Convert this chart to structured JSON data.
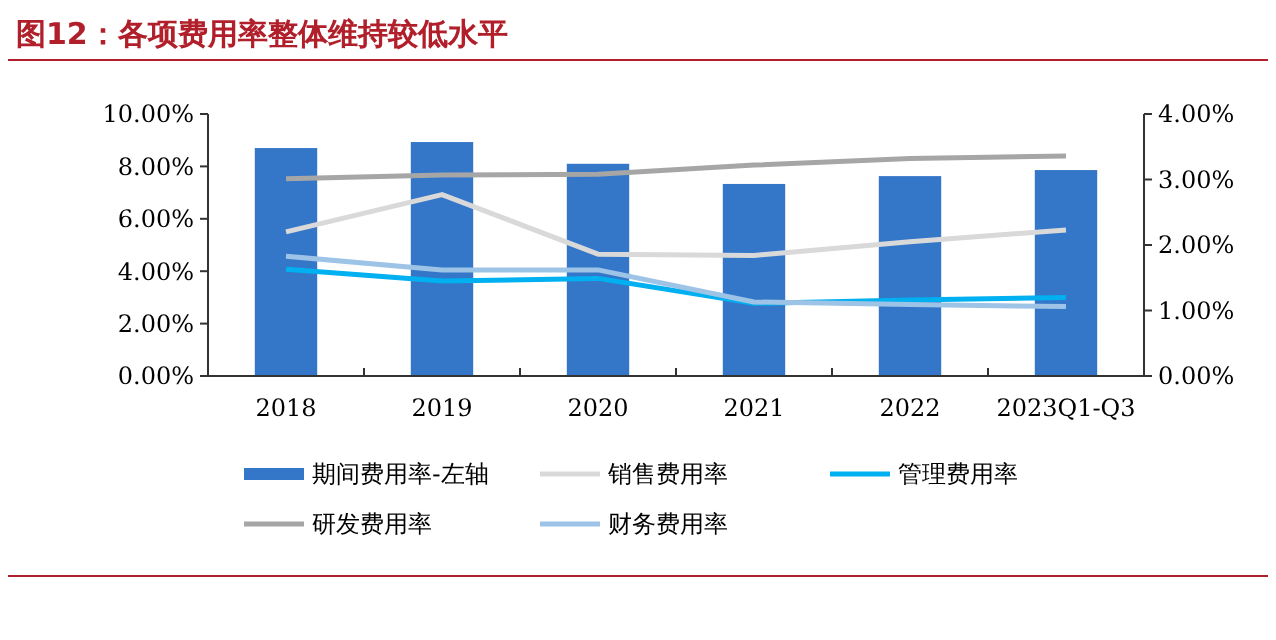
{
  "chart_data": {
    "type": "bar",
    "title": "图12：各项费用率整体维持较低水平",
    "categories": [
      "2018",
      "2019",
      "2020",
      "2021",
      "2022",
      "2023Q1-Q3"
    ],
    "series": [
      {
        "name": "期间费用率-左轴",
        "color": "#3476c8",
        "values": [
          8.7,
          8.93,
          8.1,
          7.33,
          7.63,
          7.86
        ]
      },
      {
        "name": "销售费用率",
        "type": "line",
        "axis": "y2",
        "color": "#d9d9d9",
        "values": [
          2.2,
          2.77,
          1.86,
          1.84,
          2.05,
          2.23
        ]
      },
      {
        "name": "管理费用率",
        "type": "line",
        "axis": "y2",
        "color": "#00b0f0",
        "values": [
          1.63,
          1.45,
          1.49,
          1.11,
          1.16,
          1.2
        ]
      },
      {
        "name": "研发费用率",
        "type": "line",
        "axis": "y2",
        "color": "#a6a6a6",
        "values": [
          3.01,
          3.07,
          3.08,
          3.22,
          3.32,
          3.36
        ]
      },
      {
        "name": "财务费用率",
        "type": "line",
        "axis": "y2",
        "color": "#9dc3e6",
        "values": [
          1.83,
          1.62,
          1.62,
          1.13,
          1.09,
          1.06
        ]
      }
    ],
    "ylim": [
      0,
      10
    ],
    "yticks": [
      {
        "value": 0,
        "label": "0.00%"
      },
      {
        "value": 2,
        "label": "2.00%"
      },
      {
        "value": 4,
        "label": "4.00%"
      },
      {
        "value": 6,
        "label": "6.00%"
      },
      {
        "value": 8,
        "label": "8.00%"
      },
      {
        "value": 10,
        "label": "10.00%"
      }
    ],
    "y2lim": [
      0,
      4
    ],
    "y2ticks": [
      {
        "value": 0,
        "label": "0.00%"
      },
      {
        "value": 1,
        "label": "1.00%"
      },
      {
        "value": 2,
        "label": "2.00%"
      },
      {
        "value": 3,
        "label": "3.00%"
      },
      {
        "value": 4,
        "label": "4.00%"
      }
    ],
    "grid": false,
    "legend": "bottom",
    "marker": "none",
    "line_style": "solid"
  }
}
